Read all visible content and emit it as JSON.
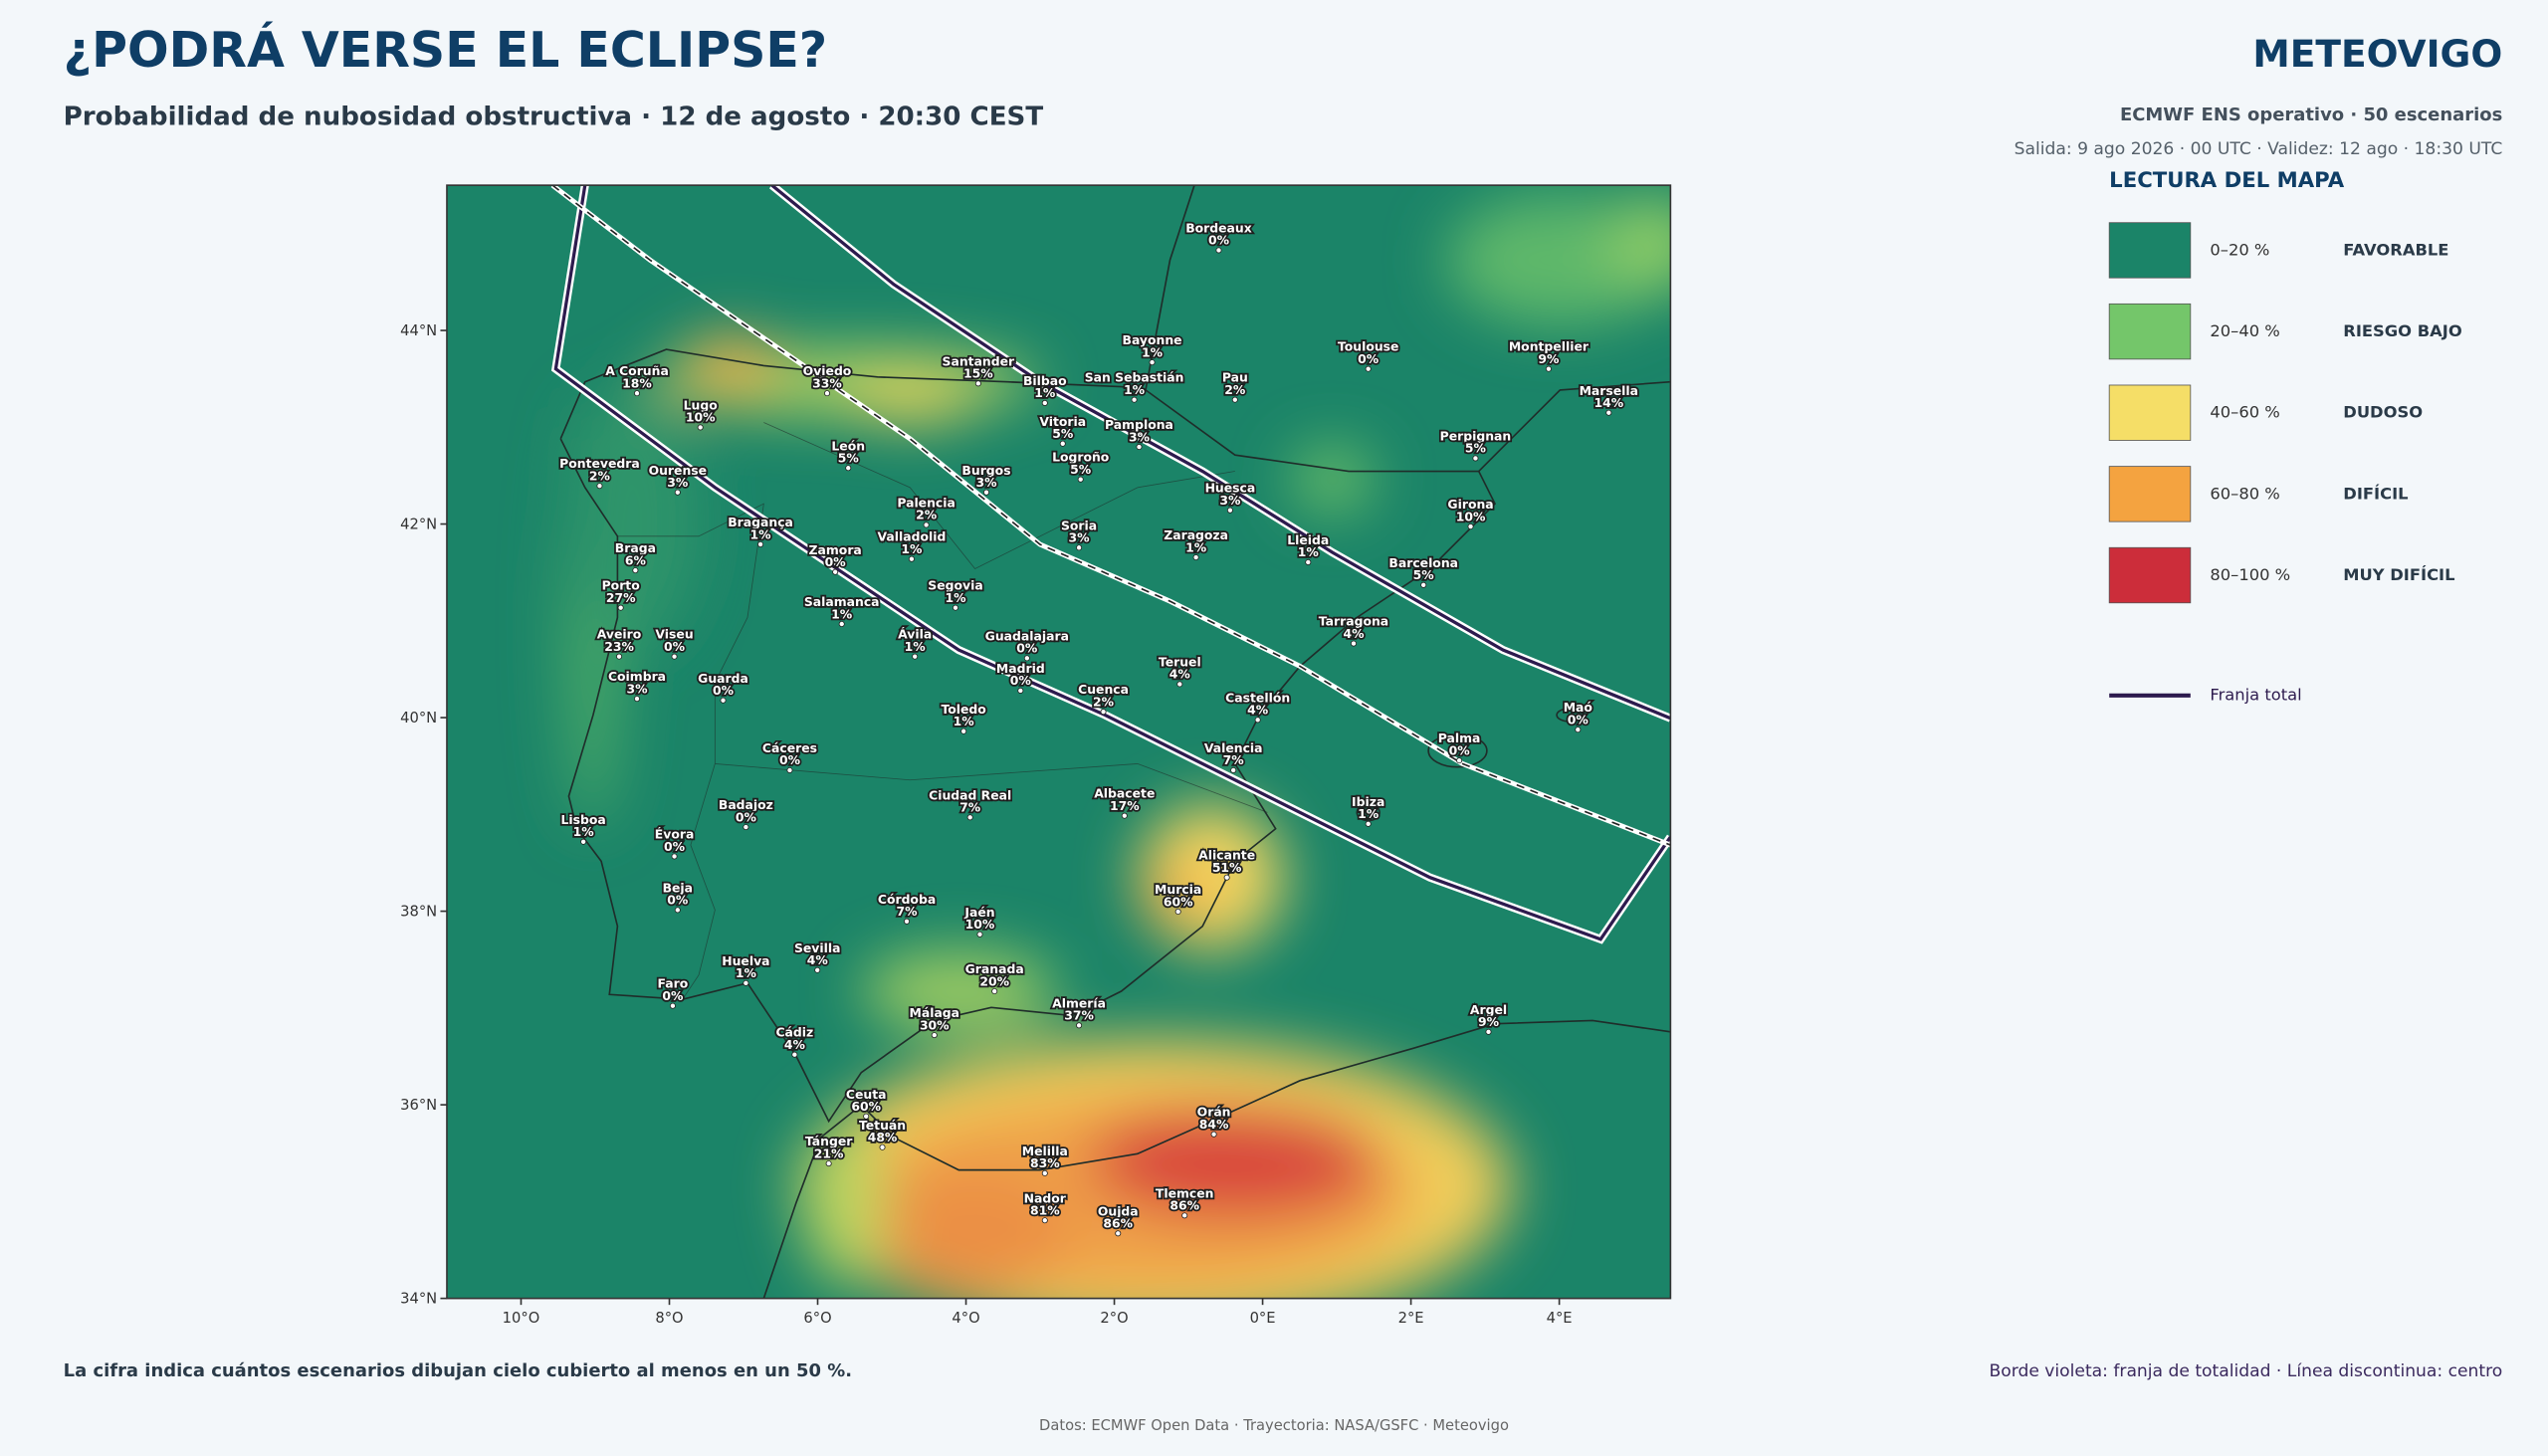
{
  "header": {
    "title": "¿PODRÁ VERSE EL ECLIPSE?",
    "subtitle": "Probabilidad de nubosidad obstructiva · 12 de agosto · 20:30 CEST",
    "brand": "METEOVIGO",
    "model": "ECMWF ENS operativo · 50 escenarios",
    "run": "Salida: 9 ago 2026 · 00 UTC · Validez: 12 ago · 18:30 UTC"
  },
  "legend": {
    "title": "LECTURA DEL MAPA",
    "items": [
      {
        "range": "0–20 %",
        "label": "FAVORABLE",
        "color": "#1b8468"
      },
      {
        "range": "20–40 %",
        "label": "RIESGO BAJO",
        "color": "#74c66a"
      },
      {
        "range": "40–60 %",
        "label": "DUDOSO",
        "color": "#f5de67"
      },
      {
        "range": "60–80 %",
        "label": "DIFÍCIL",
        "color": "#f4a340"
      },
      {
        "range": "80–100 %",
        "label": "MUY DIFÍCIL",
        "color": "#cc2d3a"
      }
    ],
    "path_label": "Franja total",
    "path_color": "#2d1b4e"
  },
  "map": {
    "xlim": [
      -11,
      5.5
    ],
    "ylim": [
      34,
      45.5
    ],
    "xticks": [
      {
        "value": -10,
        "label": "10°O"
      },
      {
        "value": -8,
        "label": "8°O"
      },
      {
        "value": -6,
        "label": "6°O"
      },
      {
        "value": -4,
        "label": "4°O"
      },
      {
        "value": -2,
        "label": "2°O"
      },
      {
        "value": 0,
        "label": "0°E"
      },
      {
        "value": 2,
        "label": "2°E"
      },
      {
        "value": 4,
        "label": "4°E"
      }
    ],
    "yticks": [
      {
        "value": 44,
        "label": "44°N"
      },
      {
        "value": 42,
        "label": "42°N"
      },
      {
        "value": 40,
        "label": "40°N"
      },
      {
        "value": 38,
        "label": "38°N"
      },
      {
        "value": 36,
        "label": "36°N"
      },
      {
        "value": 34,
        "label": "34°N"
      }
    ],
    "cities": [
      {
        "name": "Bordeaux",
        "pct": "0%"
      },
      {
        "name": "Bayonne",
        "pct": "1%"
      },
      {
        "name": "Toulouse",
        "pct": "0%"
      },
      {
        "name": "Montpellier",
        "pct": "9%"
      },
      {
        "name": "Marsella",
        "pct": "14%"
      },
      {
        "name": "A Coruña",
        "pct": "18%"
      },
      {
        "name": "Lugo",
        "pct": "10%"
      },
      {
        "name": "Oviedo",
        "pct": "33%"
      },
      {
        "name": "Santander",
        "pct": "15%"
      },
      {
        "name": "Bilbao",
        "pct": "1%"
      },
      {
        "name": "San Sebastián",
        "pct": "1%"
      },
      {
        "name": "Pau",
        "pct": "2%"
      },
      {
        "name": "Pontevedra",
        "pct": "2%"
      },
      {
        "name": "Ourense",
        "pct": "3%"
      },
      {
        "name": "León",
        "pct": "5%"
      },
      {
        "name": "Burgos",
        "pct": "3%"
      },
      {
        "name": "Vitoria",
        "pct": "5%"
      },
      {
        "name": "Pamplona",
        "pct": "3%"
      },
      {
        "name": "Logroño",
        "pct": "5%"
      },
      {
        "name": "Perpignan",
        "pct": "5%"
      },
      {
        "name": "Huesca",
        "pct": "3%"
      },
      {
        "name": "Girona",
        "pct": "10%"
      },
      {
        "name": "Braga",
        "pct": "6%"
      },
      {
        "name": "Bragança",
        "pct": "1%"
      },
      {
        "name": "Zamora",
        "pct": "0%"
      },
      {
        "name": "Palencia",
        "pct": "2%"
      },
      {
        "name": "Valladolid",
        "pct": "1%"
      },
      {
        "name": "Soria",
        "pct": "3%"
      },
      {
        "name": "Zaragoza",
        "pct": "1%"
      },
      {
        "name": "Lleida",
        "pct": "1%"
      },
      {
        "name": "Barcelona",
        "pct": "5%"
      },
      {
        "name": "Porto",
        "pct": "27%"
      },
      {
        "name": "Salamanca",
        "pct": "1%"
      },
      {
        "name": "Segovia",
        "pct": "1%"
      },
      {
        "name": "Tarragona",
        "pct": "4%"
      },
      {
        "name": "Aveiro",
        "pct": "23%"
      },
      {
        "name": "Viseu",
        "pct": "0%"
      },
      {
        "name": "Ávila",
        "pct": "1%"
      },
      {
        "name": "Guadalajara",
        "pct": "0%"
      },
      {
        "name": "Coimbra",
        "pct": "3%"
      },
      {
        "name": "Guarda",
        "pct": "0%"
      },
      {
        "name": "Madrid",
        "pct": "0%"
      },
      {
        "name": "Teruel",
        "pct": "4%"
      },
      {
        "name": "Cuenca",
        "pct": "2%"
      },
      {
        "name": "Castellón",
        "pct": "4%"
      },
      {
        "name": "Maó",
        "pct": "0%"
      },
      {
        "name": "Toledo",
        "pct": "1%"
      },
      {
        "name": "Palma",
        "pct": "0%"
      },
      {
        "name": "Cáceres",
        "pct": "0%"
      },
      {
        "name": "Valencia",
        "pct": "7%"
      },
      {
        "name": "Badajoz",
        "pct": "0%"
      },
      {
        "name": "Ciudad Real",
        "pct": "7%"
      },
      {
        "name": "Albacete",
        "pct": "17%"
      },
      {
        "name": "Ibiza",
        "pct": "1%"
      },
      {
        "name": "Lisboa",
        "pct": "1%"
      },
      {
        "name": "Évora",
        "pct": "0%"
      },
      {
        "name": "Alicante",
        "pct": "51%"
      },
      {
        "name": "Beja",
        "pct": "0%"
      },
      {
        "name": "Córdoba",
        "pct": "7%"
      },
      {
        "name": "Jaén",
        "pct": "10%"
      },
      {
        "name": "Murcia",
        "pct": "60%"
      },
      {
        "name": "Sevilla",
        "pct": "4%"
      },
      {
        "name": "Huelva",
        "pct": "1%"
      },
      {
        "name": "Granada",
        "pct": "20%"
      },
      {
        "name": "Faro",
        "pct": "0%"
      },
      {
        "name": "Argel",
        "pct": "9%"
      },
      {
        "name": "Almería",
        "pct": "37%"
      },
      {
        "name": "Málaga",
        "pct": "30%"
      },
      {
        "name": "Cádiz",
        "pct": "4%"
      },
      {
        "name": "Ceuta",
        "pct": "60%"
      },
      {
        "name": "Orán",
        "pct": "84%"
      },
      {
        "name": "Tetuán",
        "pct": "48%"
      },
      {
        "name": "Tánger",
        "pct": "21%"
      },
      {
        "name": "Melilla",
        "pct": "83%"
      },
      {
        "name": "Tlemcen",
        "pct": "86%"
      },
      {
        "name": "Nador",
        "pct": "81%"
      },
      {
        "name": "Oujda",
        "pct": "86%"
      }
    ]
  },
  "footer": {
    "note": "La cifra indica cuántos escenarios dibujan cielo cubierto al menos en un 50 %.",
    "path_note": "Borde violeta: franja de totalidad · Línea discontinua: centro",
    "source": "Datos: ECMWF Open Data · Trayectoria: NASA/GSFC · Meteovigo"
  }
}
